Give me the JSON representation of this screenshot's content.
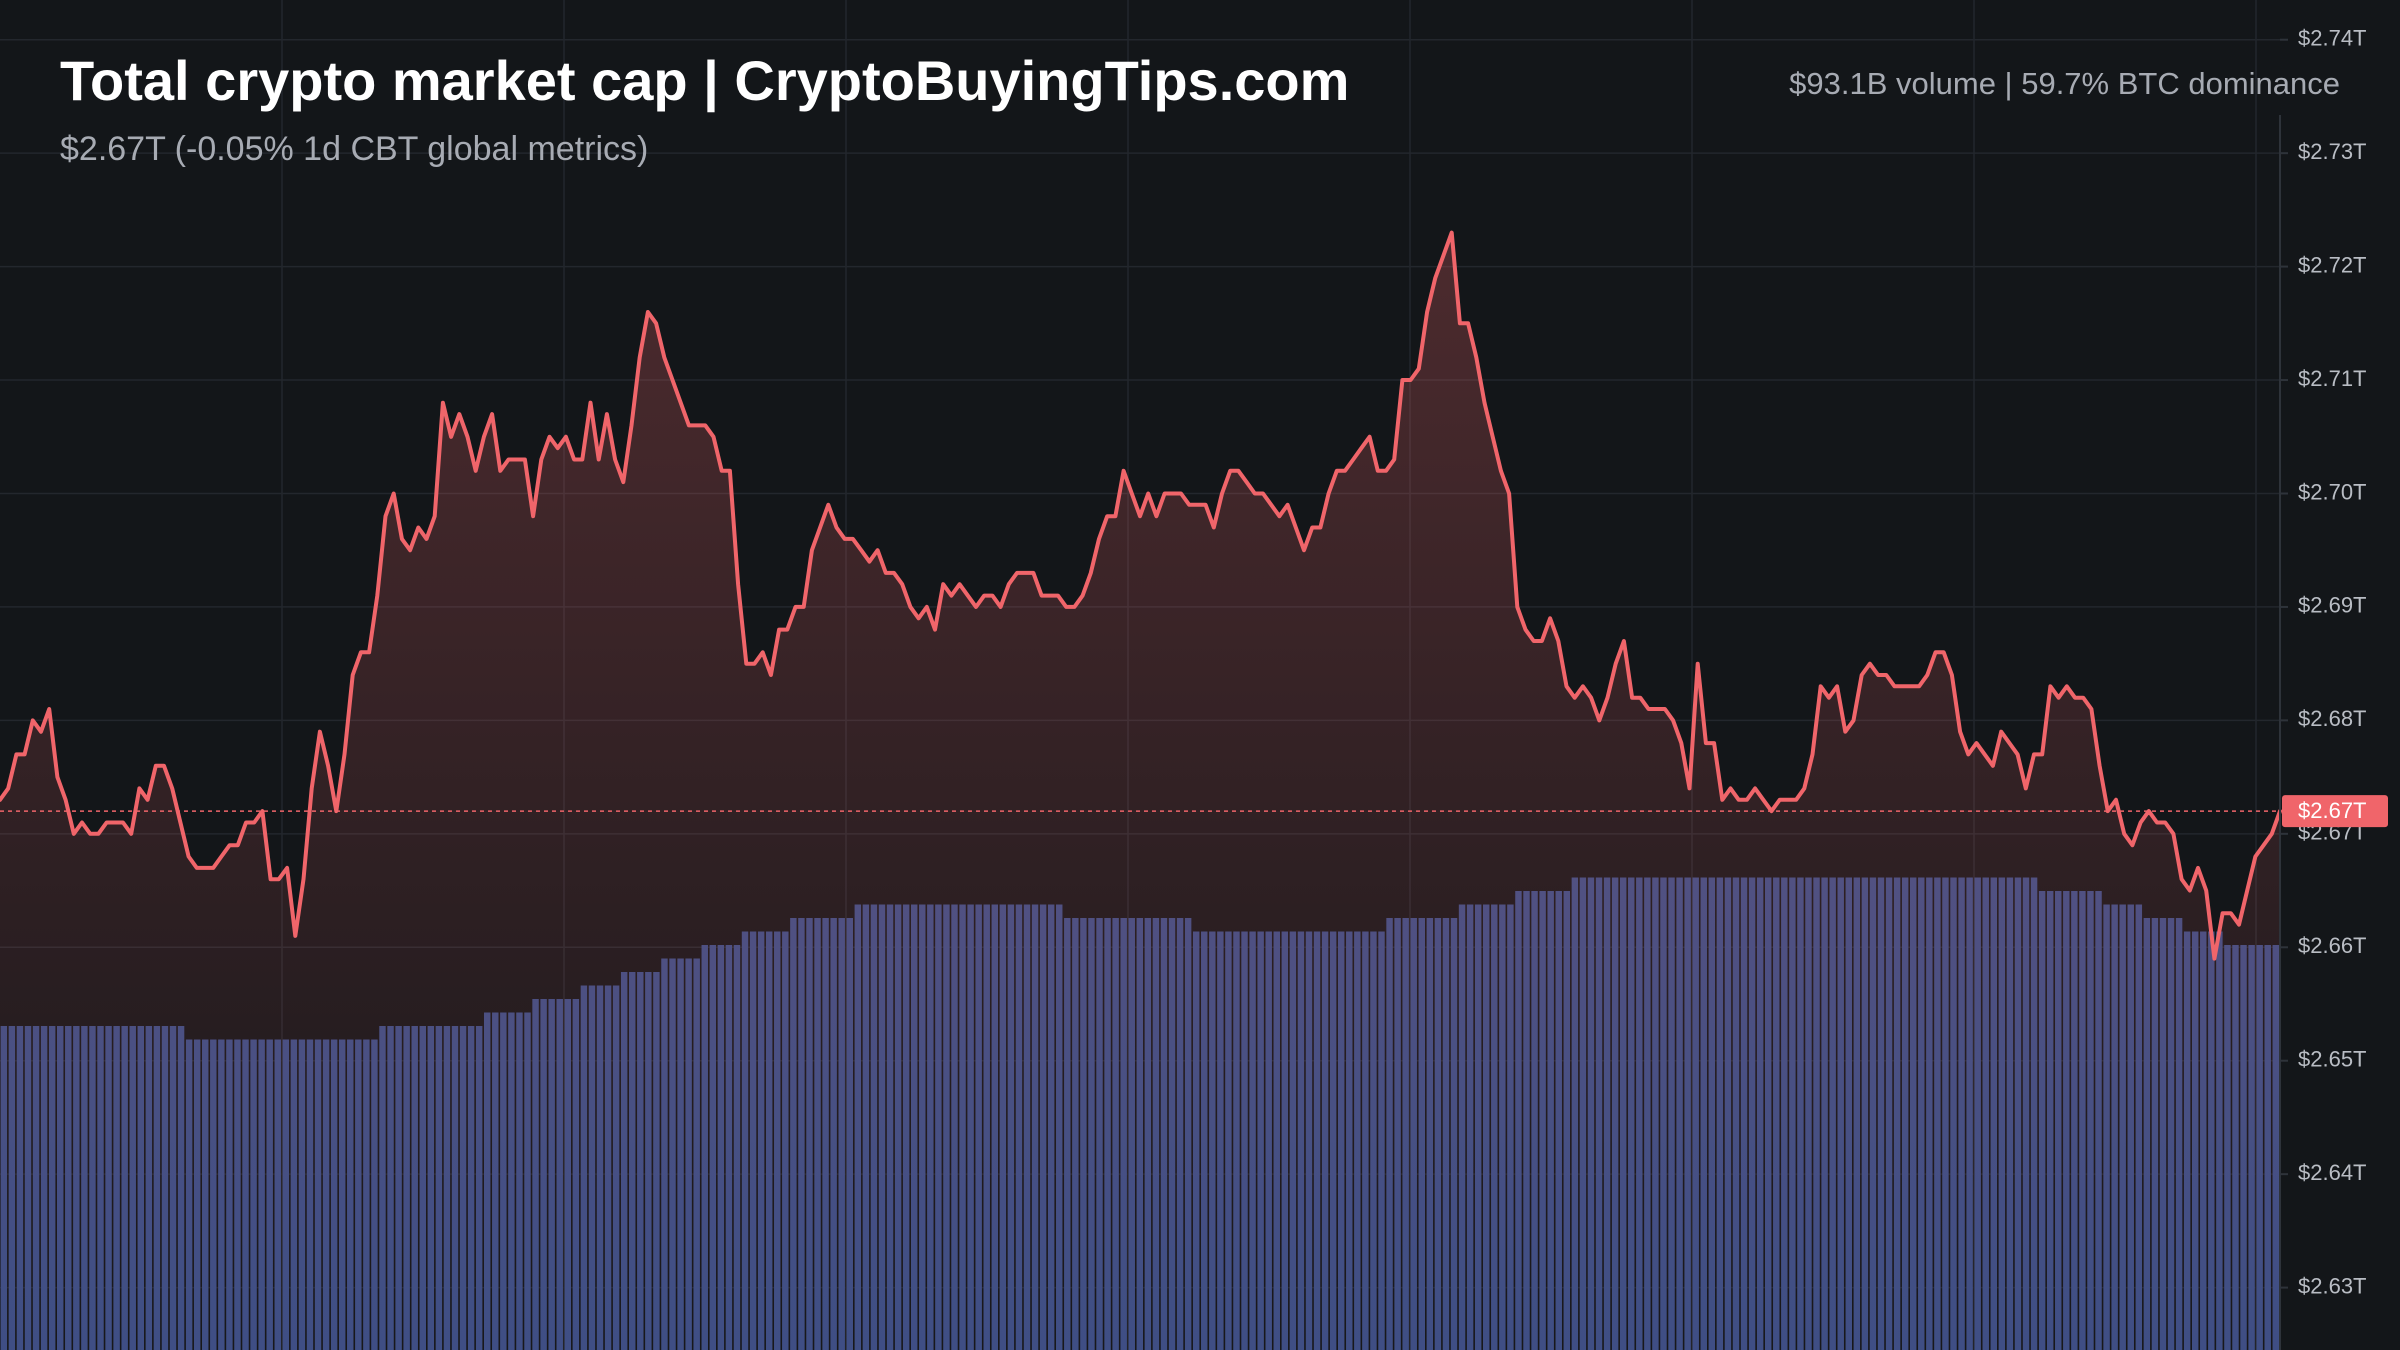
{
  "header": {
    "title": "Total crypto market cap | CryptoBuyingTips.com",
    "subtitle": "$2.67T (-0.05% 1d CBT global metrics)",
    "stats": "$93.1B volume | 59.7% BTC dominance"
  },
  "colors": {
    "background": "#131619",
    "line": "#f0656a",
    "volume": "#3b4e85",
    "grid": "#23272d",
    "price_tag": "#f0656a"
  },
  "chart_data": {
    "type": "area",
    "title": "Total crypto market cap | CryptoBuyingTips.com",
    "subtitle": "$2.67T (-0.05% 1d CBT global metrics)",
    "y_axis_position": "right",
    "ylim": [
      2.6245,
      2.7435
    ],
    "y_ticks": [
      2.74,
      2.73,
      2.72,
      2.71,
      2.7,
      2.69,
      2.68,
      2.67,
      2.66,
      2.65,
      2.64,
      2.63
    ],
    "y_tick_labels": [
      "$2.74T",
      "$2.73T",
      "$2.72T",
      "$2.71T",
      "$2.70T",
      "$2.69T",
      "$2.68T",
      "$2.67T",
      "$2.66T",
      "$2.65T",
      "$2.64T",
      "$2.63T"
    ],
    "current_value": 2.672,
    "current_label": "$2.67T",
    "grid": true,
    "series": [
      {
        "values": [
          2.673,
          2.674,
          2.677,
          2.677,
          2.68,
          2.679,
          2.681,
          2.675,
          2.673,
          2.67,
          2.671,
          2.67,
          2.67,
          2.671,
          2.671,
          2.671,
          2.67,
          2.674,
          2.673,
          2.676,
          2.676,
          2.674,
          2.671,
          2.668,
          2.667,
          2.667,
          2.667,
          2.668,
          2.669,
          2.669,
          2.671,
          2.671,
          2.672,
          2.666,
          2.666,
          2.667,
          2.661,
          2.666,
          2.674,
          2.679,
          2.676,
          2.672,
          2.677,
          2.684,
          2.686,
          2.686,
          2.691,
          2.698,
          2.7,
          2.696,
          2.695,
          2.697,
          2.696,
          2.698,
          2.708,
          2.705,
          2.707,
          2.705,
          2.702,
          2.705,
          2.707,
          2.702,
          2.703,
          2.703,
          2.703,
          2.698,
          2.703,
          2.705,
          2.704,
          2.705,
          2.703,
          2.703,
          2.708,
          2.703,
          2.707,
          2.703,
          2.701,
          2.706,
          2.712,
          2.716,
          2.715,
          2.712,
          2.71,
          2.708,
          2.706,
          2.706,
          2.706,
          2.705,
          2.702,
          2.702,
          2.692,
          2.685,
          2.685,
          2.686,
          2.684,
          2.688,
          2.688,
          2.69,
          2.69,
          2.695,
          2.697,
          2.699,
          2.697,
          2.696,
          2.696,
          2.695,
          2.694,
          2.695,
          2.693,
          2.693,
          2.692,
          2.69,
          2.689,
          2.69,
          2.688,
          2.692,
          2.691,
          2.692,
          2.691,
          2.69,
          2.691,
          2.691,
          2.69,
          2.692,
          2.693,
          2.693,
          2.693,
          2.691,
          2.691,
          2.691,
          2.69,
          2.69,
          2.691,
          2.693,
          2.696,
          2.698,
          2.698,
          2.702,
          2.7,
          2.698,
          2.7,
          2.698,
          2.7,
          2.7,
          2.7,
          2.699,
          2.699,
          2.699,
          2.697,
          2.7,
          2.702,
          2.702,
          2.701,
          2.7,
          2.7,
          2.699,
          2.698,
          2.699,
          2.697,
          2.695,
          2.697,
          2.697,
          2.7,
          2.702,
          2.702,
          2.703,
          2.704,
          2.705,
          2.702,
          2.702,
          2.703,
          2.71,
          2.71,
          2.711,
          2.716,
          2.719,
          2.721,
          2.723,
          2.715,
          2.715,
          2.712,
          2.708,
          2.705,
          2.702,
          2.7,
          2.69,
          2.688,
          2.687,
          2.687,
          2.689,
          2.687,
          2.683,
          2.682,
          2.683,
          2.682,
          2.68,
          2.682,
          2.685,
          2.687,
          2.682,
          2.682,
          2.681,
          2.681,
          2.681,
          2.68,
          2.678,
          2.674,
          2.685,
          2.678,
          2.678,
          2.673,
          2.674,
          2.673,
          2.673,
          2.674,
          2.673,
          2.672,
          2.673,
          2.673,
          2.673,
          2.674,
          2.677,
          2.683,
          2.682,
          2.683,
          2.679,
          2.68,
          2.684,
          2.685,
          2.684,
          2.684,
          2.683,
          2.683,
          2.683,
          2.683,
          2.684,
          2.686,
          2.686,
          2.684,
          2.679,
          2.677,
          2.678,
          2.677,
          2.676,
          2.679,
          2.678,
          2.677,
          2.674,
          2.677,
          2.677,
          2.683,
          2.682,
          2.683,
          2.682,
          2.682,
          2.681,
          2.676,
          2.672,
          2.673,
          2.67,
          2.669,
          2.671,
          2.672,
          2.671,
          2.671,
          2.67,
          2.666,
          2.665,
          2.667,
          2.665,
          2.659,
          2.663,
          2.663,
          2.662,
          2.665,
          2.668,
          2.669,
          2.67,
          2.672
        ]
      }
    ],
    "volume": [
      24,
      24,
      24,
      24,
      24,
      24,
      24,
      24,
      24,
      24,
      24,
      24,
      24,
      24,
      24,
      24,
      24,
      24,
      24,
      24,
      24,
      24,
      24,
      23,
      23,
      23,
      23,
      23,
      23,
      23,
      23,
      23,
      23,
      23,
      23,
      23,
      23,
      23,
      23,
      23,
      23,
      23,
      23,
      23,
      23,
      23,
      23,
      24,
      24,
      24,
      24,
      24,
      24,
      24,
      24,
      24,
      24,
      24,
      24,
      24,
      25,
      25,
      25,
      25,
      25,
      25,
      26,
      26,
      26,
      26,
      26,
      26,
      27,
      27,
      27,
      27,
      27,
      28,
      28,
      28,
      28,
      28,
      29,
      29,
      29,
      29,
      29,
      30,
      30,
      30,
      30,
      30,
      31,
      31,
      31,
      31,
      31,
      31,
      32,
      32,
      32,
      32,
      32,
      32,
      32,
      32,
      33,
      33,
      33,
      33,
      33,
      33,
      33,
      33,
      33,
      33,
      33,
      33,
      33,
      33,
      33,
      33,
      33,
      33,
      33,
      33,
      33,
      33,
      33,
      33,
      33,
      33,
      32,
      32,
      32,
      32,
      32,
      32,
      32,
      32,
      32,
      32,
      32,
      32,
      32,
      32,
      32,
      32,
      31,
      31,
      31,
      31,
      31,
      31,
      31,
      31,
      31,
      31,
      31,
      31,
      31,
      31,
      31,
      31,
      31,
      31,
      31,
      31,
      31,
      31,
      31,
      31,
      32,
      32,
      32,
      32,
      32,
      32,
      32,
      32,
      32,
      33,
      33,
      33,
      33,
      33,
      33,
      33,
      34,
      34,
      34,
      34,
      34,
      34,
      34,
      35,
      35,
      35,
      35,
      35,
      35,
      35,
      35,
      35,
      35,
      35,
      35,
      35,
      35,
      35,
      35,
      35,
      35,
      35,
      35,
      35,
      35,
      35,
      35,
      35,
      35,
      35,
      35,
      35,
      35,
      35,
      35,
      35,
      35,
      35,
      35,
      35,
      35,
      35,
      35,
      35,
      35,
      35,
      35,
      35,
      35,
      35,
      35,
      35,
      35,
      35,
      35,
      35,
      35,
      35,
      35,
      35,
      35,
      34,
      34,
      34,
      34,
      34,
      34,
      34,
      34,
      33,
      33,
      33,
      33,
      33,
      32,
      32,
      32,
      32,
      32,
      31,
      31,
      31,
      31,
      31,
      30,
      30,
      30,
      30,
      30,
      30,
      30
    ],
    "volume_scale_max": 100
  }
}
